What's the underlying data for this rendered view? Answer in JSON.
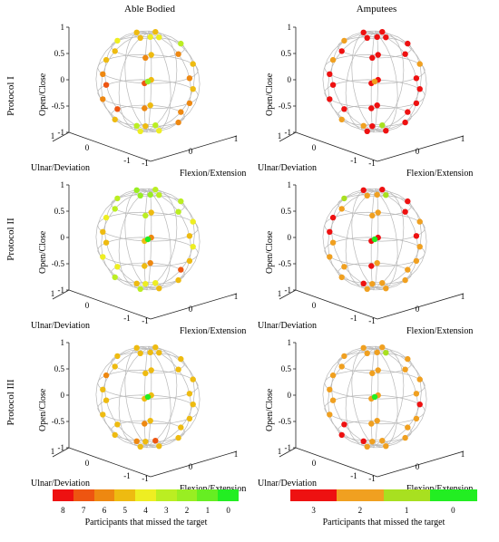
{
  "columns": [
    "Able Bodied",
    "Amputees"
  ],
  "rows": [
    "Protocol I",
    "Protocol II",
    "Protocol III"
  ],
  "axes": {
    "z_label": "Open/Close",
    "x_label": "Flexion/Extension",
    "y_label": "Ulnar/Deviation",
    "z_ticks": [
      "1",
      "0.5",
      "0",
      "-0.5",
      "-1"
    ],
    "x_ticks": [
      "-1",
      "0",
      "1"
    ],
    "y_ticks": [
      "1",
      "0",
      "-1"
    ]
  },
  "colorbars": [
    {
      "title": "Participants that missed the target",
      "ticks": [
        "8",
        "7",
        "6",
        "5",
        "4",
        "3",
        "2",
        "1",
        "0"
      ],
      "colors": [
        "#ee1111",
        "#ee5511",
        "#ee8811",
        "#eebb11",
        "#eeee22",
        "#bbee22",
        "#99ee22",
        "#66ee22",
        "#22ee22"
      ]
    },
    {
      "title": "Participants that missed the target",
      "ticks": [
        "3",
        "2",
        "1",
        "0"
      ],
      "colors": [
        "#ee1111",
        "#f0a020",
        "#a8e020",
        "#22ee22"
      ]
    }
  ],
  "chart_data": [
    {
      "panel": "Able Bodied - Protocol I",
      "type": "scatter",
      "missed_counts": [
        4,
        5,
        5,
        5,
        6,
        6,
        5,
        4,
        4,
        3,
        6,
        7,
        6,
        5,
        5,
        5,
        6,
        6,
        6,
        7,
        5,
        5,
        6,
        5,
        5,
        7,
        5,
        6,
        4,
        4,
        3,
        3,
        2
      ]
    },
    {
      "panel": "Amputees - Protocol I",
      "type": "scatter",
      "missed_counts": [
        3,
        3,
        3,
        3,
        3,
        3,
        3,
        2,
        3,
        3,
        3,
        3,
        3,
        2,
        3,
        2,
        3,
        3,
        3,
        3,
        3,
        3,
        3,
        3,
        2,
        3,
        3,
        3,
        3,
        3,
        2,
        1,
        2
      ]
    },
    {
      "panel": "Able Bodied - Protocol II",
      "type": "scatter",
      "missed_counts": [
        3,
        2,
        2,
        3,
        3,
        3,
        3,
        3,
        2,
        3,
        5,
        5,
        5,
        4,
        5,
        4,
        5,
        5,
        4,
        5,
        6,
        4,
        5,
        4,
        3,
        4,
        6,
        7,
        5,
        3,
        5,
        4,
        0
      ]
    },
    {
      "panel": "Amputees - Protocol II",
      "type": "scatter",
      "missed_counts": [
        1,
        2,
        3,
        3,
        3,
        2,
        2,
        1,
        2,
        3,
        3,
        3,
        3,
        3,
        2,
        2,
        2,
        3,
        2,
        2,
        3,
        2,
        2,
        2,
        2,
        2,
        2,
        2,
        2,
        2,
        3,
        2,
        0
      ]
    },
    {
      "panel": "Able Bodied - Protocol III",
      "type": "scatter",
      "missed_counts": [
        5,
        5,
        5,
        5,
        5,
        5,
        5,
        5,
        5,
        5,
        5,
        5,
        5,
        6,
        5,
        5,
        5,
        6,
        5,
        5,
        5,
        5,
        5,
        5,
        5,
        5,
        5,
        5,
        5,
        5,
        6,
        7,
        0
      ]
    },
    {
      "panel": "Amputees - Protocol III",
      "type": "scatter",
      "missed_counts": [
        1,
        2,
        2,
        2,
        2,
        2,
        2,
        2,
        2,
        2,
        2,
        2,
        2,
        2,
        2,
        2,
        2,
        2,
        2,
        2,
        2,
        3,
        2,
        2,
        3,
        3,
        2,
        2,
        2,
        2,
        3,
        2,
        0
      ]
    }
  ]
}
